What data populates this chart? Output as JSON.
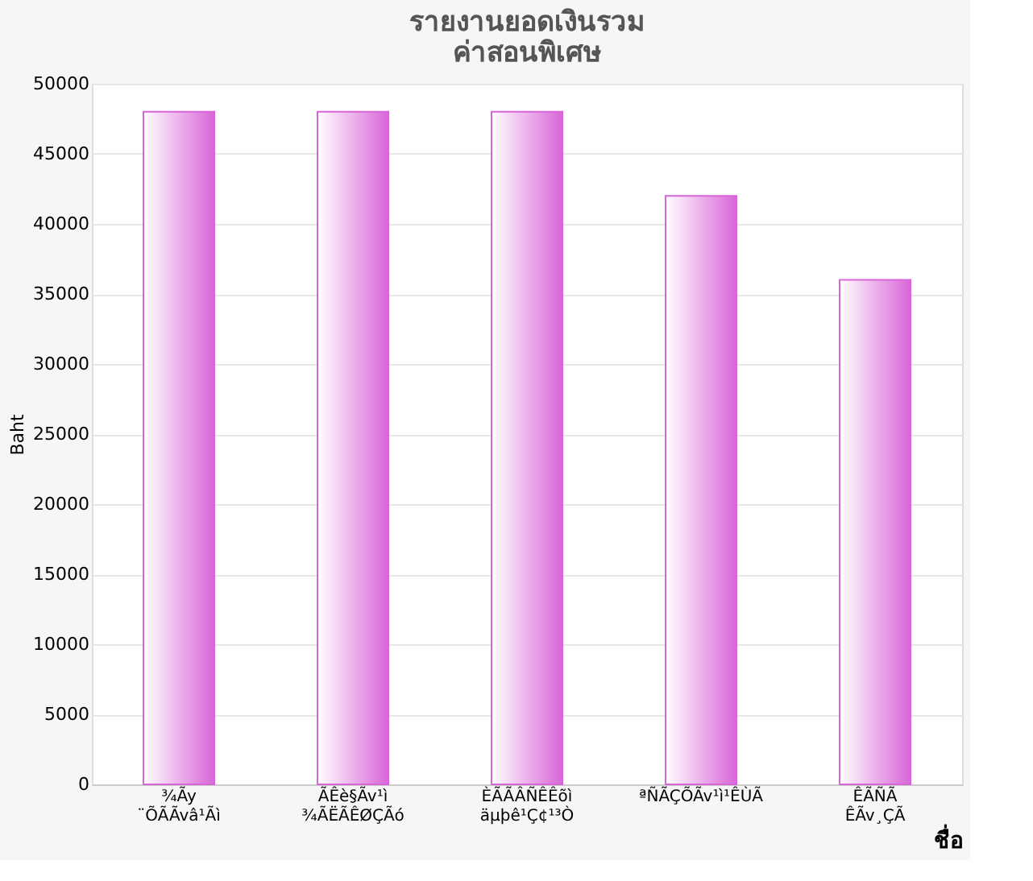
{
  "chart_data": {
    "type": "bar",
    "title": [
      "รายงานยอดเงินรวม",
      "ค่าสอนพิเศษ"
    ],
    "xlabel": "ชื่อ",
    "ylabel": "Baht",
    "categories": [
      "¾Ãy ¨ÕÃÃvâ¹Ãì",
      "ÃÊè§Ãv¹ì ¾ÃËÃÊØÇÃó",
      "ÈÃÃÂÑÊÊõì äµþê¹Ç¢¹³Ò",
      "ªÑÃÇÕÃv¹ì¹ÊÙÃ",
      "ÊÃÑÃ ÊÃv¸ÇÃ"
    ],
    "values": [
      48000,
      48000,
      48000,
      42000,
      36000
    ],
    "color": "#d966d9",
    "ylim": [
      0,
      50000
    ],
    "yticks": [
      0,
      5000,
      10000,
      15000,
      20000,
      25000,
      30000,
      35000,
      40000,
      45000,
      50000
    ],
    "grid": "y"
  }
}
